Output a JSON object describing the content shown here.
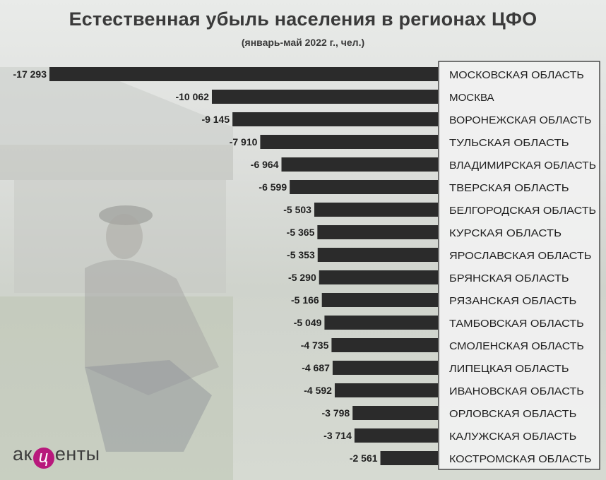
{
  "title": "Естественная убыль населения в регионах ЦФО",
  "subtitle": "(январь-май 2022 г., чел.)",
  "logo": {
    "part1": "ак",
    "mark": "ц",
    "part2": "енты"
  },
  "colors": {
    "bar": "#2b2b2b",
    "label_box_border": "#222222",
    "text": "#1f1f1f"
  },
  "chart_data": {
    "type": "bar",
    "orientation": "horizontal",
    "title": "Естественная убыль населения в регионах ЦФО",
    "subtitle": "(январь-май 2022 г., чел.)",
    "categories": [
      "МОСКОВСКАЯ ОБЛАСТЬ",
      "МОСКВА",
      "ВОРОНЕЖСКАЯ ОБЛАСТЬ",
      "ТУЛЬСКАЯ ОБЛАСТЬ",
      "ВЛАДИМИРСКАЯ ОБЛАСТЬ",
      "ТВЕРСКАЯ ОБЛАСТЬ",
      "БЕЛГОРОДСКАЯ ОБЛАСТЬ",
      "КУРСКАЯ ОБЛАСТЬ",
      "ЯРОСЛАВСКАЯ ОБЛАСТЬ",
      "БРЯНСКАЯ ОБЛАСТЬ",
      "РЯЗАНСКАЯ ОБЛАСТЬ",
      "ТАМБОВСКАЯ ОБЛАСТЬ",
      "СМОЛЕНСКАЯ ОБЛАСТЬ",
      "ЛИПЕЦКАЯ ОБЛАСТЬ",
      "ИВАНОВСКАЯ ОБЛАСТЬ",
      "ОРЛОВСКАЯ ОБЛАСТЬ",
      "КАЛУЖСКАЯ ОБЛАСТЬ",
      "КОСТРОМСКАЯ ОБЛАСТЬ"
    ],
    "values": [
      -17293,
      -10062,
      -9145,
      -7910,
      -6964,
      -6599,
      -5503,
      -5365,
      -5353,
      -5290,
      -5166,
      -5049,
      -4735,
      -4687,
      -4592,
      -3798,
      -3714,
      -2561
    ],
    "value_labels": [
      "-17 293",
      "-10 062",
      "-9 145",
      "-7 910",
      "-6 964",
      "-6 599",
      "-5 503",
      "-5 365",
      "-5 353",
      "-5 290",
      "-5 166",
      "-5 049",
      "-4 735",
      "-4 687",
      "-4 592",
      "-3 798",
      "-3 714",
      "-2 561"
    ],
    "xlim": [
      -17293,
      0
    ],
    "grid": false,
    "legend": false
  }
}
